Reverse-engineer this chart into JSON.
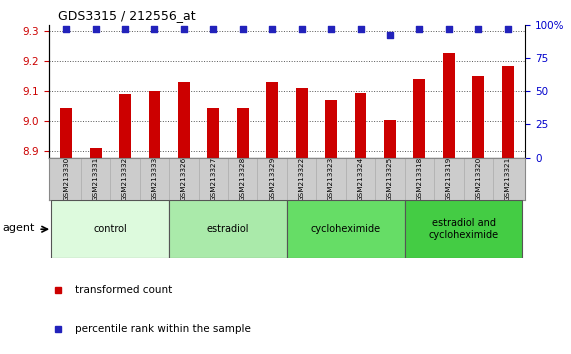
{
  "title": "GDS3315 / 212556_at",
  "samples": [
    "GSM213330",
    "GSM213331",
    "GSM213332",
    "GSM213333",
    "GSM213326",
    "GSM213327",
    "GSM213328",
    "GSM213329",
    "GSM213322",
    "GSM213323",
    "GSM213324",
    "GSM213325",
    "GSM213318",
    "GSM213319",
    "GSM213320",
    "GSM213321"
  ],
  "bar_values": [
    9.045,
    8.91,
    9.09,
    9.1,
    9.13,
    9.045,
    9.045,
    9.13,
    9.11,
    9.07,
    9.095,
    9.005,
    9.14,
    9.225,
    9.15,
    9.185
  ],
  "percentile_values": [
    97,
    97,
    97,
    97,
    97,
    97,
    97,
    97,
    97,
    97,
    97,
    92,
    97,
    97,
    97,
    97
  ],
  "bar_color": "#cc0000",
  "percentile_color": "#2222bb",
  "ylim_left": [
    8.88,
    9.32
  ],
  "ylim_right": [
    0,
    100
  ],
  "yticks_left": [
    8.9,
    9.0,
    9.1,
    9.2,
    9.3
  ],
  "yticks_right": [
    0,
    25,
    50,
    75,
    100
  ],
  "groups": [
    {
      "label": "control",
      "start": 0,
      "end": 4,
      "color": "#ddfadd"
    },
    {
      "label": "estradiol",
      "start": 4,
      "end": 8,
      "color": "#aaeaaa"
    },
    {
      "label": "cycloheximide",
      "start": 8,
      "end": 12,
      "color": "#66dd66"
    },
    {
      "label": "estradiol and\ncycloheximide",
      "start": 12,
      "end": 16,
      "color": "#44cc44"
    }
  ],
  "agent_label": "agent",
  "legend_bar_label": "transformed count",
  "legend_dot_label": "percentile rank within the sample",
  "bg_color": "#ffffff",
  "plot_bg": "#ffffff",
  "tick_label_color_left": "#cc0000",
  "tick_label_color_right": "#0000cc",
  "grid_color": "#555555",
  "sample_bg_color": "#cccccc"
}
